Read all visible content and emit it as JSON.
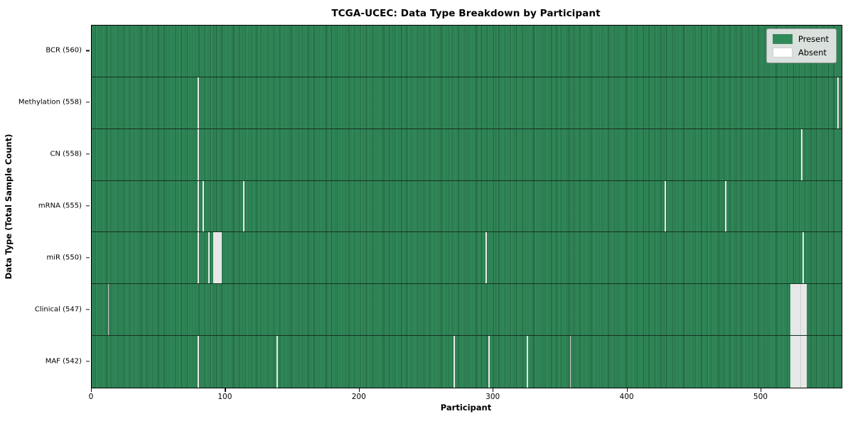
{
  "chart_data": {
    "type": "heatmap",
    "title": "TCGA-UCEC: Data Type Breakdown by Participant",
    "xlabel": "Participant",
    "ylabel": "Data Type (Total Sample Count)",
    "x_ticks": [
      0,
      100,
      200,
      300,
      400,
      500
    ],
    "x_range": [
      0,
      560
    ],
    "total_participants": 560,
    "grid": false,
    "legend_position": "upper right",
    "colors": {
      "present": "#2e8b57",
      "absent": "#ffffff",
      "cell_edge": "#215c3c",
      "row_separator": "#14301f"
    },
    "legend": [
      {
        "label": "Present",
        "color": "#2e8b57"
      },
      {
        "label": "Absent",
        "color": "#ffffff"
      }
    ],
    "rows": [
      {
        "label": "BCR (560)",
        "data_type": "BCR",
        "present_count": 560,
        "absent_participants": []
      },
      {
        "label": "Methylation (558)",
        "data_type": "Methylation",
        "present_count": 558,
        "absent_participants": [
          79,
          557
        ]
      },
      {
        "label": "CN (558)",
        "data_type": "CN",
        "present_count": 558,
        "absent_participants": [
          79,
          530
        ]
      },
      {
        "label": "mRNA (555)",
        "data_type": "mRNA",
        "present_count": 555,
        "absent_participants": [
          79,
          83,
          113,
          428,
          473
        ]
      },
      {
        "label": "miR (550)",
        "data_type": "miR",
        "present_count": 550,
        "absent_participants": [
          79,
          87,
          91,
          92,
          93,
          94,
          95,
          96,
          294,
          531
        ]
      },
      {
        "label": "Clinical (547)",
        "data_type": "Clinical",
        "present_count": 547,
        "absent_participants": [
          12,
          522,
          523,
          524,
          525,
          526,
          527,
          528,
          529,
          530,
          531,
          532,
          533
        ]
      },
      {
        "label": "MAF (542)",
        "data_type": "MAF",
        "present_count": 542,
        "absent_participants": [
          79,
          138,
          270,
          296,
          325,
          357,
          522,
          523,
          524,
          525,
          526,
          527,
          528,
          529,
          530,
          531,
          532,
          533
        ]
      }
    ]
  }
}
